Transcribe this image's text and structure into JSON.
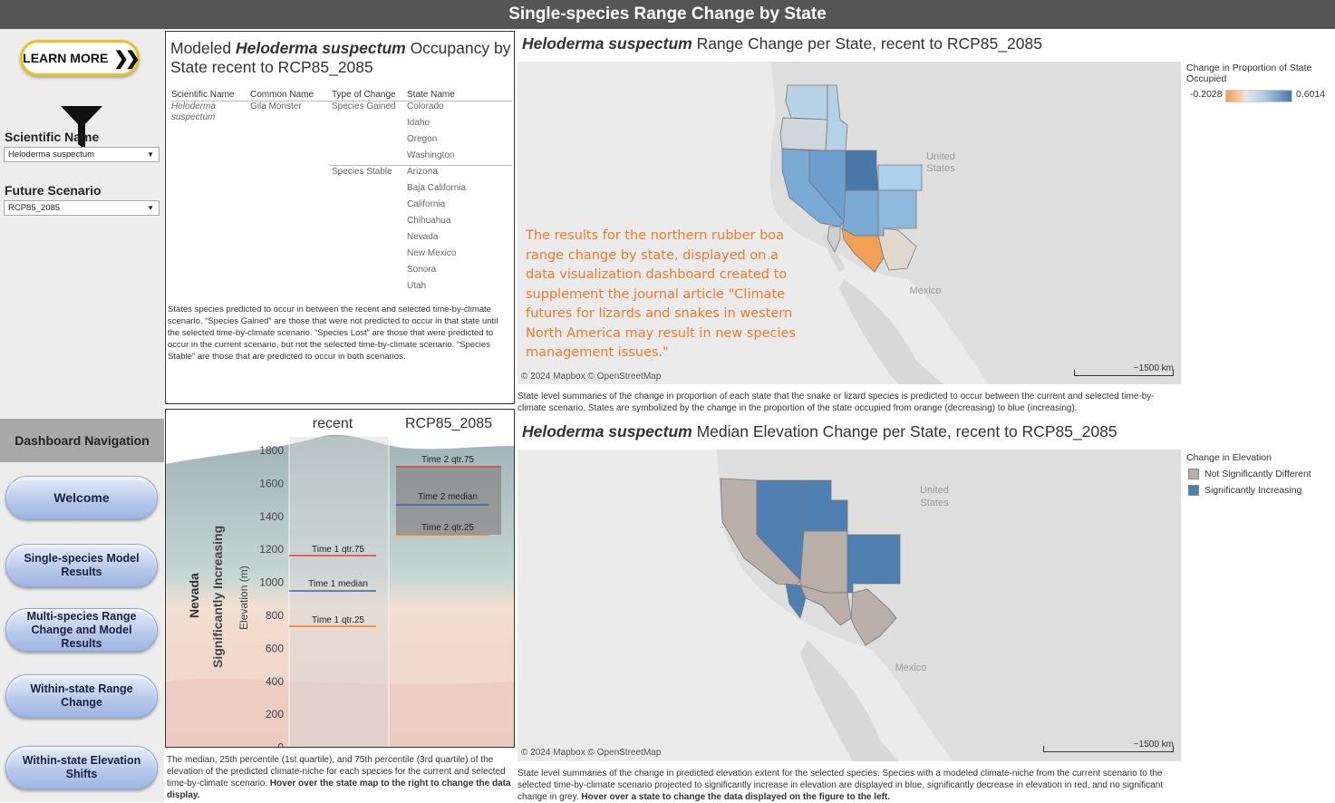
{
  "header": {
    "title": "Single-species Range Change by State"
  },
  "sidebar": {
    "learn_more": "LEARN MORE",
    "scientific_name_label": "Scientific Name",
    "scientific_name_value": "Heloderma suspectum",
    "future_scenario_label": "Future Scenario",
    "future_scenario_value": "RCP85_2085",
    "nav_title": "Dashboard Navigation",
    "nav": [
      {
        "label": "Welcome"
      },
      {
        "label": "Single-species Model Results"
      },
      {
        "label": "Multi-species Range Change and Model Results"
      },
      {
        "label": "Within-state Range Change"
      },
      {
        "label": "Within-state Elevation Shifts"
      }
    ]
  },
  "occupancy": {
    "title_prefix": "Modeled ",
    "species": "Heloderma suspectum",
    "title_suffix": " Occupancy by State recent to RCP85_2085",
    "columns": [
      "Scientific Name",
      "Common Name",
      "Type of Change",
      "State Name"
    ],
    "scientific_name_line1": "Heloderma",
    "scientific_name_line2": "suspectum",
    "common_name": "Gila Monster",
    "groups": [
      {
        "type": "Species Gained",
        "states": [
          "Colorado",
          "Idaho",
          "Oregon",
          "Washington"
        ]
      },
      {
        "type": "Species Stable",
        "states": [
          "Arizona",
          "Baja California",
          "California",
          "Chihuahua",
          "Nevada",
          "New Mexico",
          "Sonora",
          "Utah"
        ]
      }
    ],
    "note": "States species predicted to occur in between the recent and selected time-by-climate scenario. “Species Gained” are those that were not predicted to occur in that state until the selected time-by-climate scenario. “Species Lost” are those that were predicted to occur in the current scenario, but not the selected time-by-climate scenario. “Species Stable” are those that are predicted to occur in both scenarios."
  },
  "elevation_chart": {
    "col_recent": "recent",
    "col_future": "RCP85_2085",
    "state": "Nevada",
    "status": "Significantly Increasing",
    "ylabel": "Elevation (m)",
    "ticks": [
      "1800",
      "1600",
      "1400",
      "1200",
      "1000",
      "800",
      "600",
      "400",
      "200",
      "0"
    ],
    "t1_q75": "Time 1 qtr.75",
    "t1_median": "Time 1 median",
    "t1_q25": "Time 1 qtr.25",
    "t2_q75": "Time 2 qtr.75",
    "t2_median": "Time 2 median",
    "t2_q25": "Time 2 qtr.25",
    "note_plain": "The median, 25th percentile (1st quartile), and 75th percentile (3rd quartile) of the elevation of the predicted climate-niche for each species for the current and selected time-by-climate scenario. ",
    "note_bold": "Hover over the state map to the right to change the data display."
  },
  "range_map": {
    "species": "Heloderma suspectum",
    "title_suffix": " Range Change per State, recent to RCP85_2085",
    "legend_title": "Change in Proportion of State Occupied",
    "legend_min": "-0.2028",
    "legend_max": "0.6014",
    "attribution": "© 2024 Mapbox  © OpenStreetMap",
    "scale": "~1500 km",
    "label_us": "United States",
    "label_mx": "Mexico",
    "overlay": "The results for the northern rubber boa range change by state, displayed on a data visualization dashboard created to supplement the journal article \"Climate futures for lizards and snakes in western North America may result in new species management issues.\"",
    "note": "State level summaries of the change in proportion of each state that the snake or lizard species is predicted to occur between the current and selected time-by-climate scenario. States are symbolized by the change in the proportion of the state occupied from orange (decreasing) to blue (increasing)."
  },
  "elev_map": {
    "species": "Heloderma suspectum",
    "title_suffix": " Median Elevation Change per State, recent to RCP85_2085",
    "legend_title": "Change in Elevation",
    "legend_items": [
      {
        "label": "Not Significantly Different",
        "color": "#b9aea8"
      },
      {
        "label": "Significantly Increasing",
        "color": "#4f7fb0"
      }
    ],
    "attribution": "© 2024 Mapbox  © OpenStreetMap",
    "scale": "~1500 km",
    "label_us": "United States",
    "label_mx": "Mexico",
    "note_plain": "State level summaries of the change in predicted elevation extent for the selected species. Species with a modeled climate-niche from the current scenario to the selected time-by-climate scenario projected to significantly increase in elevation are displayed in blue, significantly decrease in elevation in red, and no significant change in grey. ",
    "note_bold": "Hover over a state to change the data displayed on the figure to the left."
  }
}
